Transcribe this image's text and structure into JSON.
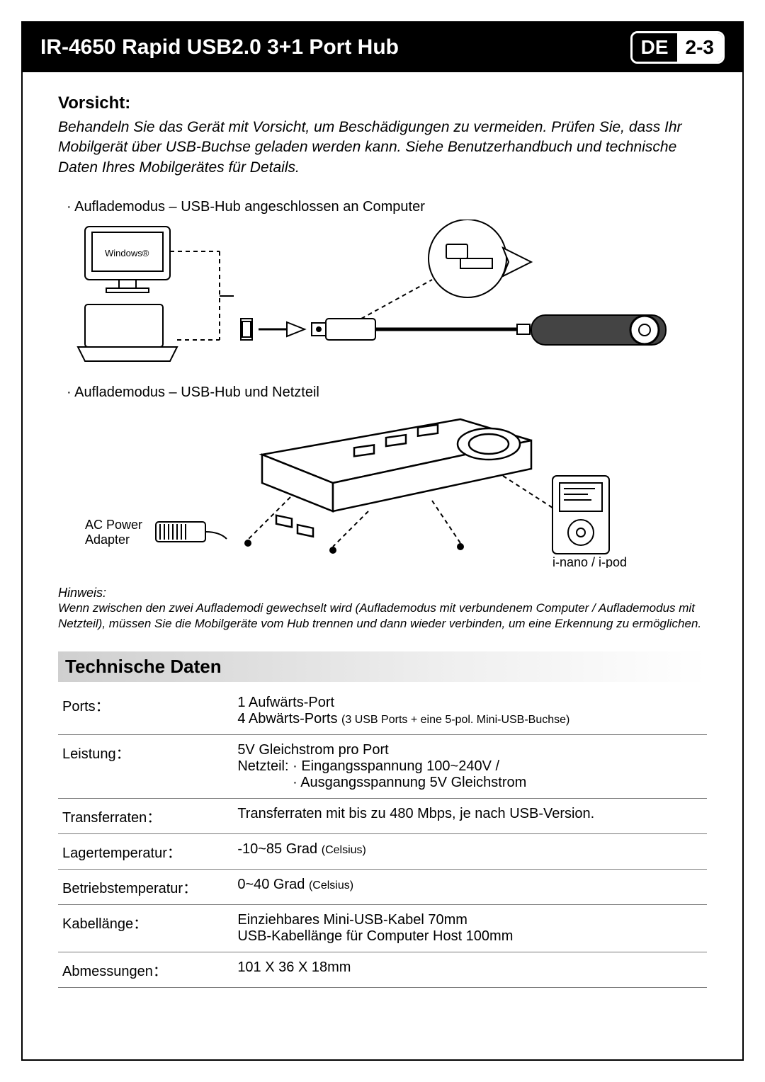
{
  "header": {
    "title": "IR-4650 Rapid USB2.0 3+1 Port Hub",
    "lang_code": "DE",
    "page_range": "2-3"
  },
  "colors": {
    "header_bg": "#000000",
    "header_text": "#ffffff",
    "page_bg": "#ffffff",
    "border": "#000000",
    "section_bar_start": "#cfcfcf",
    "section_bar_end": "#ffffff",
    "table_rule": "#7a7a7a"
  },
  "vorsicht": {
    "heading": "Vorsicht:",
    "body": "Behandeln Sie das Gerät mit Vorsicht, um Beschädigungen zu vermeiden. Prüfen Sie, dass Ihr Mobilgerät über USB-Buchse geladen werden kann. Siehe Benutzerhandbuch und technische Daten Ihres Mobilgerätes für Details."
  },
  "modes": {
    "mode1_label": "Auflademodus – USB-Hub angeschlossen an Computer",
    "mode2_label": "Auflademodus – USB-Hub und Netzteil"
  },
  "diagram1_labels": {
    "windows": "Windows®"
  },
  "diagram2_labels": {
    "ac_power": "AC Power",
    "adapter": "Adapter",
    "ipod": "i-nano / i-pod"
  },
  "hinweis": {
    "heading": "Hinweis:",
    "body": "Wenn zwischen den zwei Auflademodi gewechselt wird (Auflademodus mit verbundenem Computer / Auflademodus mit Netzteil), müssen Sie die Mobilgeräte vom Hub trennen und dann wieder verbinden, um eine Erkennung zu ermöglichen."
  },
  "tech_section_title": "Technische Daten",
  "specs": {
    "rows": [
      {
        "label": "Ports：",
        "value_lines": [
          "1 Aufwärts-Port",
          "4 Abwärts-Ports <span class='sub-note'>(3 USB Ports + eine 5-pol. Mini-USB-Buchse)</span>"
        ]
      },
      {
        "label": "Leistung：",
        "value_lines": [
          "5V Gleichstrom pro Port",
          "Netzteil: · Eingangsspannung 100~240V /",
          "&nbsp;&nbsp;&nbsp;&nbsp;&nbsp;&nbsp;&nbsp;&nbsp;&nbsp;&nbsp;&nbsp;&nbsp;&nbsp;&nbsp;· Ausgangsspannung 5V Gleichstrom"
        ]
      },
      {
        "label": "Transferraten：",
        "value_lines": [
          "Transferraten mit bis zu 480 Mbps, je nach USB-Version."
        ]
      },
      {
        "label": "Lagertemperatur：",
        "value_lines": [
          "-10~85 Grad <span class='sub-note'>(Celsius)</span>"
        ]
      },
      {
        "label": "Betriebstemperatur：",
        "value_lines": [
          "0~40 Grad <span class='sub-note'>(Celsius)</span>"
        ]
      },
      {
        "label": "Kabellänge：",
        "value_lines": [
          "Einziehbares Mini-USB-Kabel 70mm",
          "USB-Kabellänge für Computer Host 100mm"
        ]
      },
      {
        "label": "Abmessungen：",
        "value_lines": [
          "101 X 36 X 18mm"
        ]
      }
    ]
  },
  "diagram_style": {
    "stroke": "#000000",
    "stroke_width": 2,
    "dash": "6,5",
    "fill": "#ffffff"
  }
}
